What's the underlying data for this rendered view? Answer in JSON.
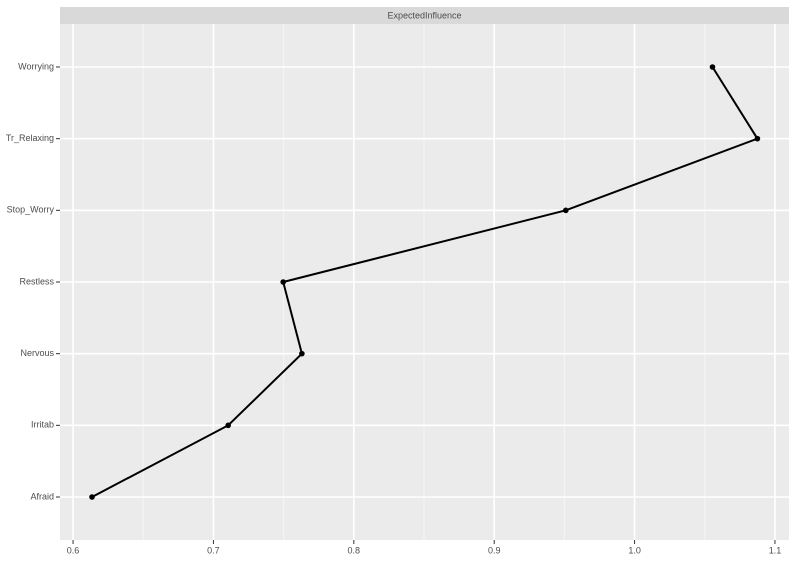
{
  "chart_data": {
    "type": "line",
    "title": "ExpectedInfluence",
    "categories": [
      "Afraid",
      "Irritab",
      "Nervous",
      "Restless",
      "Stop_Worry",
      "Tr_Relaxing",
      "Worrying"
    ],
    "values": [
      0.6135,
      0.7105,
      0.763,
      0.7497,
      0.951,
      1.0875,
      1.0555
    ],
    "color": "#000000",
    "xlim": [
      0.5907,
      1.11
    ],
    "xticks": [
      0.6,
      0.7,
      0.8,
      0.9,
      {
        "value": 1.0,
        "label": "1.0"
      },
      1.1
    ],
    "grid": true
  }
}
